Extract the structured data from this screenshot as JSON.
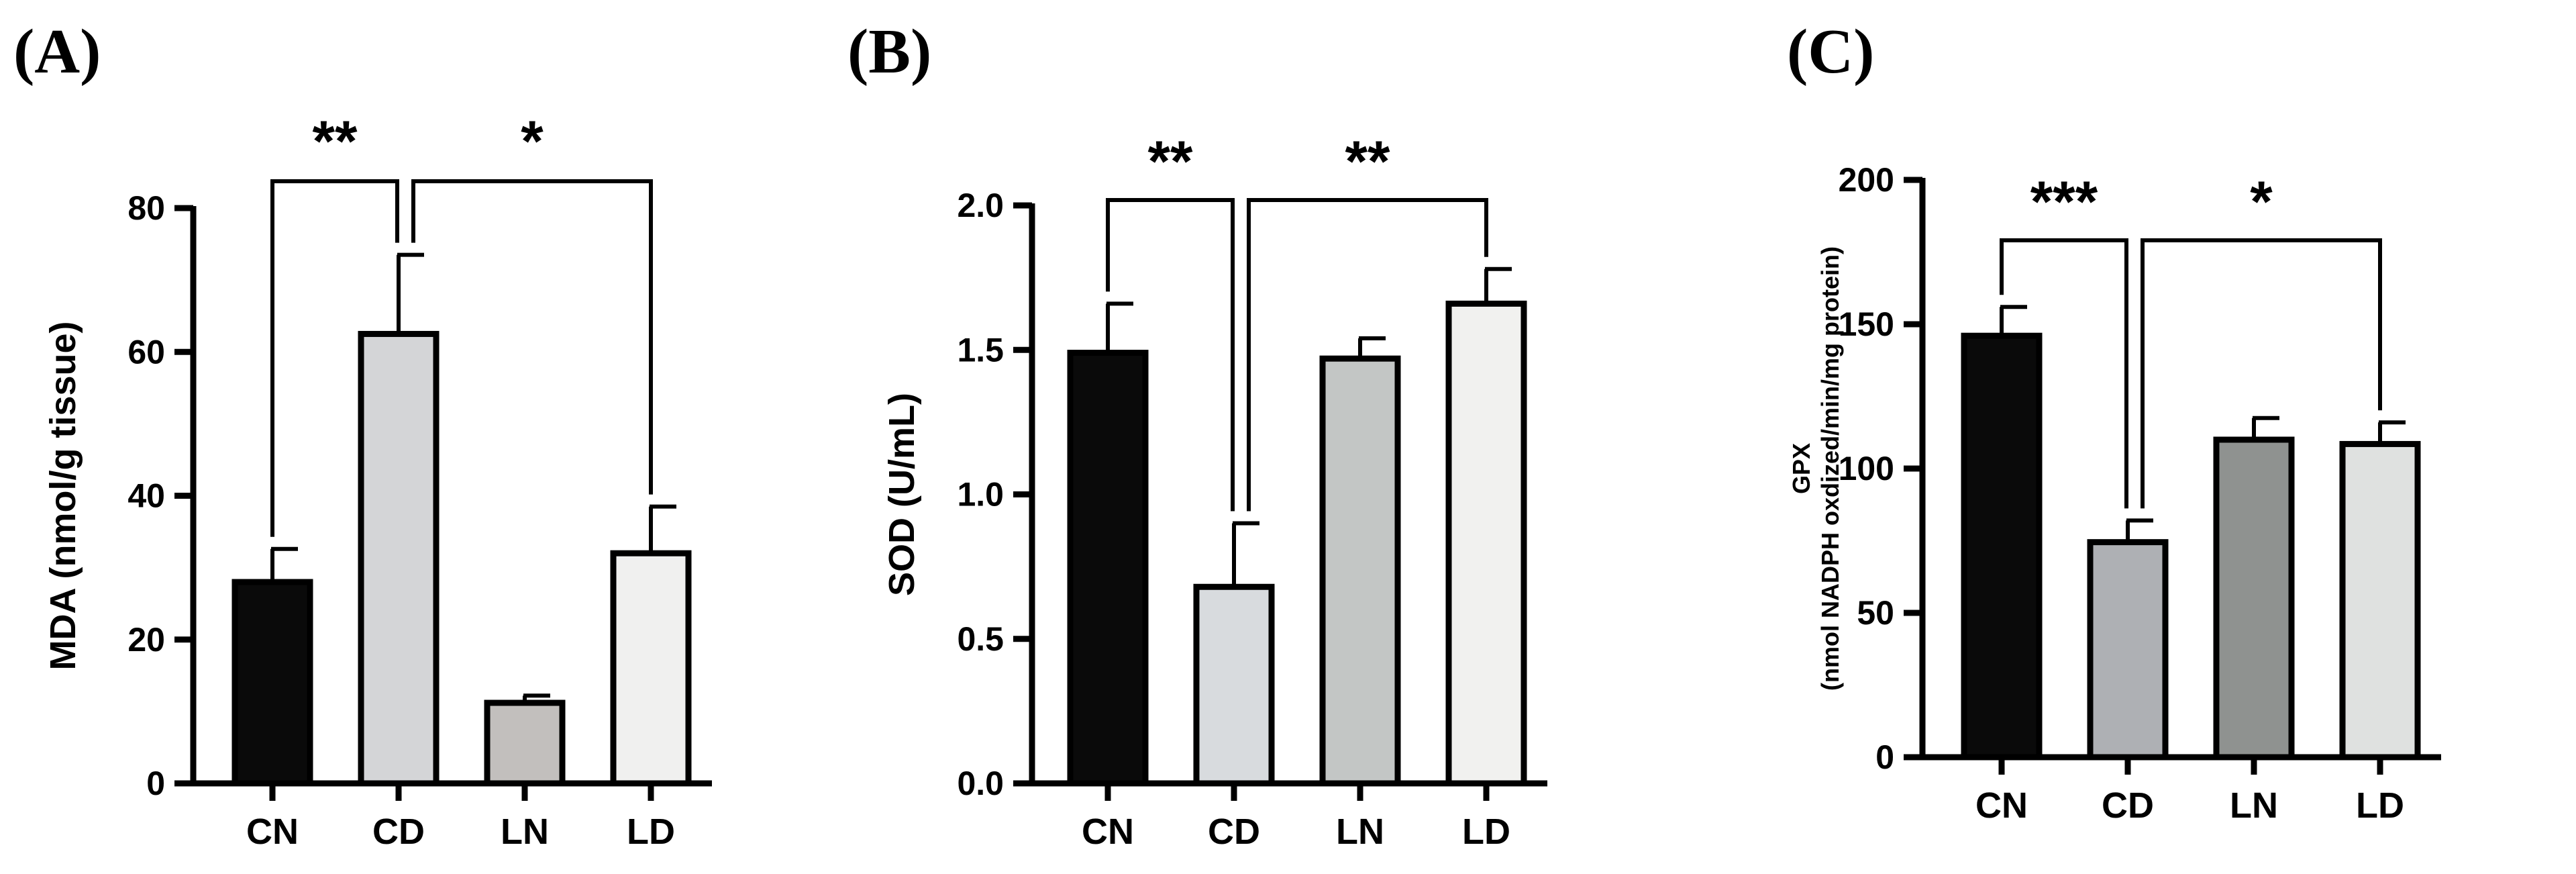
{
  "chart_data": [
    {
      "type": "bar",
      "panel_label": "(A)",
      "ylabel": [
        "MDA (nmol/g tissue)"
      ],
      "categories": [
        "CN",
        "CD",
        "LN",
        "LD"
      ],
      "values": [
        28,
        62.5,
        11.2,
        32
      ],
      "errors": [
        4.6,
        11,
        1,
        6.5
      ],
      "colors": [
        "#0a0a0a",
        "#d4d5d7",
        "#c2bfbd",
        "#f0f0ef"
      ],
      "ylim": [
        0,
        80
      ],
      "yticks": [
        0,
        20,
        40,
        60,
        80
      ],
      "significance": [
        {
          "from": 0,
          "to": 1,
          "label": "**"
        },
        {
          "from": 1,
          "to": 3,
          "label": "*"
        }
      ]
    },
    {
      "type": "bar",
      "panel_label": "(B)",
      "ylabel": [
        "SOD (U/mL)"
      ],
      "categories": [
        "CN",
        "CD",
        "LN",
        "LD"
      ],
      "values": [
        1.49,
        0.68,
        1.47,
        1.66
      ],
      "errors": [
        0.17,
        0.22,
        0.07,
        0.12
      ],
      "colors": [
        "#0a0a0a",
        "#d8dbde",
        "#c3c6c5",
        "#f1f1ef"
      ],
      "ylim": [
        0,
        2
      ],
      "yticks": [
        0.0,
        0.5,
        1.0,
        1.5,
        2.0
      ],
      "ytick_labels": [
        "0.0",
        "0.5",
        "1.0",
        "1.5",
        "2.0"
      ],
      "significance": [
        {
          "from": 0,
          "to": 1,
          "label": "**"
        },
        {
          "from": 1,
          "to": 3,
          "label": "**"
        }
      ]
    },
    {
      "type": "bar",
      "panel_label": "(C)",
      "ylabel": [
        "GPX",
        "(nmol NADPH oxdized/min/mg protein)"
      ],
      "categories": [
        "CN",
        "CD",
        "LN",
        "LD"
      ],
      "values": [
        146,
        74.5,
        110,
        108.5
      ],
      "errors": [
        10,
        7.5,
        7.5,
        7.5
      ],
      "colors": [
        "#0a0a0a",
        "#aeb0b4",
        "#8f9290",
        "#dfe1e0"
      ],
      "ylim": [
        0,
        200
      ],
      "yticks": [
        0,
        50,
        100,
        150,
        200
      ],
      "significance": [
        {
          "from": 0,
          "to": 1,
          "label": "***"
        },
        {
          "from": 1,
          "to": 3,
          "label": "*"
        }
      ]
    }
  ]
}
